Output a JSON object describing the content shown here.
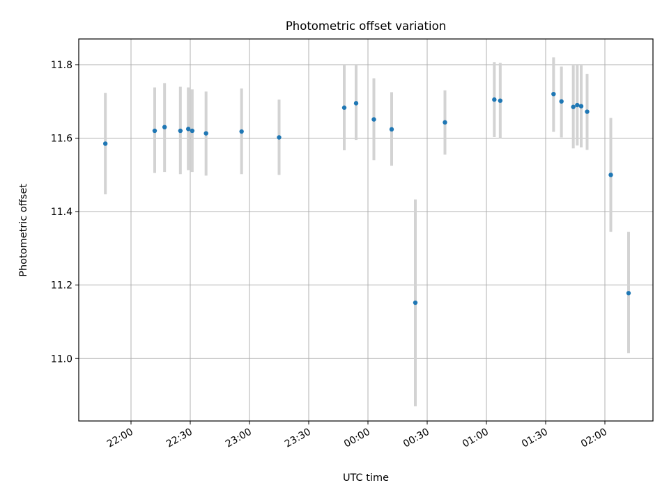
{
  "chart_data": {
    "type": "scatter",
    "title": "Photometric offset variation",
    "xlabel": "UTC time",
    "ylabel": "Photometric offset",
    "x_tick_labels": [
      "22:00",
      "22:30",
      "23:00",
      "23:30",
      "00:00",
      "00:30",
      "01:00",
      "01:30",
      "02:00"
    ],
    "y_tick_labels": [
      "11.0",
      "11.2",
      "11.4",
      "11.6",
      "11.8"
    ],
    "ylim": [
      10.83,
      11.87
    ],
    "grid": true,
    "colors": {
      "marker": "#1f77b4",
      "errorbar": "#d3d3d3",
      "grid": "#b0b0b0"
    },
    "series": [
      {
        "points": [
          {
            "x": "21:47",
            "y": 11.585,
            "ylo": 11.447,
            "yhi": 11.723
          },
          {
            "x": "22:12",
            "y": 11.62,
            "ylo": 11.505,
            "yhi": 11.738
          },
          {
            "x": "22:17",
            "y": 11.63,
            "ylo": 11.508,
            "yhi": 11.75
          },
          {
            "x": "22:25",
            "y": 11.62,
            "ylo": 11.502,
            "yhi": 11.74
          },
          {
            "x": "22:29",
            "y": 11.625,
            "ylo": 11.513,
            "yhi": 11.738
          },
          {
            "x": "22:31",
            "y": 11.62,
            "ylo": 11.508,
            "yhi": 11.733
          },
          {
            "x": "22:38",
            "y": 11.613,
            "ylo": 11.498,
            "yhi": 11.727
          },
          {
            "x": "22:56",
            "y": 11.618,
            "ylo": 11.502,
            "yhi": 11.735
          },
          {
            "x": "23:15",
            "y": 11.602,
            "ylo": 11.5,
            "yhi": 11.705
          },
          {
            "x": "23:48",
            "y": 11.683,
            "ylo": 11.567,
            "yhi": 11.8
          },
          {
            "x": "23:54",
            "y": 11.695,
            "ylo": 11.595,
            "yhi": 11.8
          },
          {
            "x": "00:03",
            "y": 11.651,
            "ylo": 11.54,
            "yhi": 11.763
          },
          {
            "x": "00:12",
            "y": 11.624,
            "ylo": 11.525,
            "yhi": 11.725
          },
          {
            "x": "00:24",
            "y": 11.152,
            "ylo": 10.87,
            "yhi": 11.433
          },
          {
            "x": "00:39",
            "y": 11.643,
            "ylo": 11.555,
            "yhi": 11.73
          },
          {
            "x": "01:04",
            "y": 11.705,
            "ylo": 11.603,
            "yhi": 11.807
          },
          {
            "x": "01:07",
            "y": 11.702,
            "ylo": 11.6,
            "yhi": 11.805
          },
          {
            "x": "01:34",
            "y": 11.72,
            "ylo": 11.617,
            "yhi": 11.82
          },
          {
            "x": "01:38",
            "y": 11.7,
            "ylo": 11.602,
            "yhi": 11.795
          },
          {
            "x": "01:44",
            "y": 11.685,
            "ylo": 11.572,
            "yhi": 11.798
          },
          {
            "x": "01:46",
            "y": 11.69,
            "ylo": 11.58,
            "yhi": 11.8
          },
          {
            "x": "01:48",
            "y": 11.687,
            "ylo": 11.575,
            "yhi": 11.798
          },
          {
            "x": "01:51",
            "y": 11.672,
            "ylo": 11.568,
            "yhi": 11.775
          },
          {
            "x": "02:03",
            "y": 11.5,
            "ylo": 11.345,
            "yhi": 11.655
          },
          {
            "x": "02:12",
            "y": 11.178,
            "ylo": 11.015,
            "yhi": 11.345
          }
        ]
      }
    ]
  }
}
